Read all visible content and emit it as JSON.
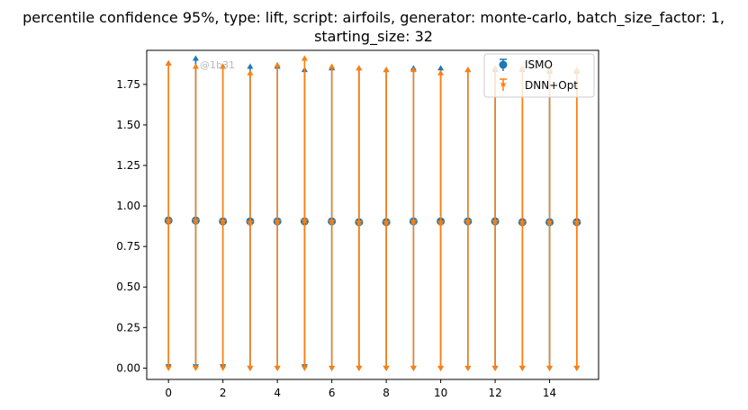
{
  "chart_data": {
    "type": "scatter",
    "title": "percentile confidence 95%, type: lift, script: airfoils, generator: monte-carlo, batch_size_factor: 1,",
    "title_line2": "starting_size: 32",
    "xlabel": "",
    "ylabel": "",
    "xlim": [
      -0.8,
      15.8
    ],
    "ylim": [
      -0.07,
      1.96
    ],
    "xticks": [
      0,
      2,
      4,
      6,
      8,
      10,
      12,
      14
    ],
    "yticks": [
      0.0,
      0.25,
      0.5,
      0.75,
      1.0,
      1.25,
      1.5,
      1.75
    ],
    "ytick_labels": [
      "0.00",
      "0.25",
      "0.50",
      "0.75",
      "1.00",
      "1.25",
      "1.50",
      "1.75"
    ],
    "legend_position": "top-right",
    "watermark": "@1b31",
    "x": [
      0,
      1,
      2,
      3,
      4,
      5,
      6,
      7,
      8,
      9,
      10,
      11,
      12,
      13,
      14,
      15
    ],
    "series": [
      {
        "name": "ISMO",
        "color": "#1f77b4",
        "marker": "circle",
        "values": [
          0.91,
          0.91,
          0.905,
          0.905,
          0.905,
          0.905,
          0.905,
          0.9,
          0.9,
          0.905,
          0.905,
          0.905,
          0.905,
          0.9,
          0.9,
          0.9
        ],
        "upper": [
          1.88,
          1.91,
          1.86,
          1.86,
          1.86,
          1.84,
          1.85,
          1.85,
          1.84,
          1.85,
          1.85,
          1.84,
          1.84,
          1.84,
          1.83,
          1.83
        ],
        "lower": [
          0.01,
          0.01,
          0.01,
          0.0,
          0.0,
          0.01,
          0.0,
          0.0,
          0.0,
          0.0,
          0.0,
          0.0,
          0.0,
          0.0,
          0.0,
          0.0
        ]
      },
      {
        "name": "DNN+Opt",
        "color": "#ff7f0e",
        "marker": "star",
        "values": [
          0.91,
          0.91,
          0.905,
          0.9,
          0.905,
          0.91,
          0.905,
          0.9,
          0.9,
          0.905,
          0.9,
          0.905,
          0.905,
          0.9,
          0.9,
          0.9
        ],
        "upper": [
          1.88,
          1.86,
          1.86,
          1.82,
          1.87,
          1.91,
          1.86,
          1.85,
          1.84,
          1.84,
          1.82,
          1.84,
          1.85,
          1.85,
          1.84,
          1.84
        ],
        "lower": [
          0.0,
          0.0,
          0.0,
          0.0,
          0.0,
          0.0,
          0.0,
          0.0,
          0.0,
          0.0,
          0.0,
          0.0,
          0.0,
          0.0,
          0.0,
          0.0
        ]
      }
    ]
  }
}
